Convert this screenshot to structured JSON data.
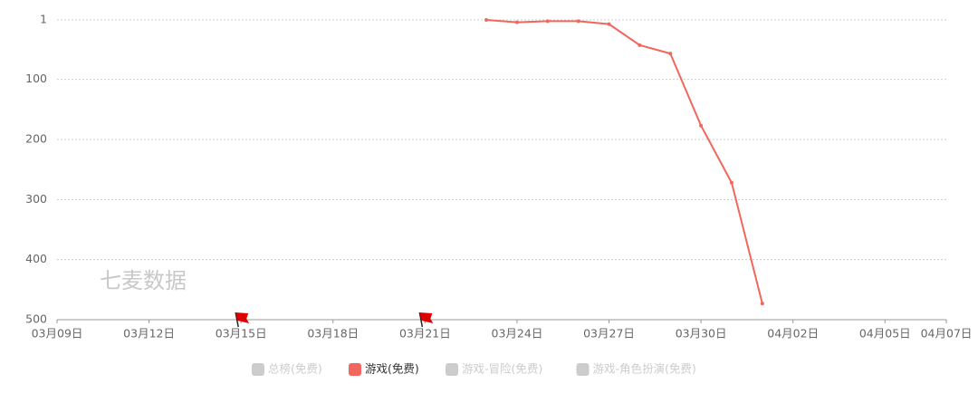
{
  "chart_data": {
    "type": "line",
    "watermark": "七麦数据",
    "x": [
      "03月23日",
      "03月24日",
      "03月25日",
      "03月26日",
      "03月27日",
      "03月28日",
      "03月29日",
      "03月30日",
      "03月31日",
      "04月01日"
    ],
    "series": [
      {
        "name": "总榜(免费)",
        "color": "#cccccc",
        "visible": false,
        "values": [
          null,
          null,
          null,
          null,
          null,
          null,
          null,
          null,
          null,
          null
        ]
      },
      {
        "name": "游戏(免费)",
        "color": "#f0675d",
        "visible": true,
        "values": [
          1,
          5,
          3,
          3,
          8,
          43,
          57,
          177,
          272,
          473
        ]
      },
      {
        "name": "游戏-冒险(免费)",
        "color": "#cccccc",
        "visible": false,
        "values": [
          null,
          null,
          null,
          null,
          null,
          null,
          null,
          null,
          null,
          null
        ]
      },
      {
        "name": "游戏-角色扮演(免费)",
        "color": "#cccccc",
        "visible": false,
        "values": [
          null,
          null,
          null,
          null,
          null,
          null,
          null,
          null,
          null,
          null
        ]
      }
    ],
    "xlim": [
      "03月09日",
      "04月07日"
    ],
    "xticks": [
      "03月09日",
      "03月12日",
      "03月15日",
      "03月18日",
      "03月21日",
      "03月24日",
      "03月27日",
      "03月30日",
      "04月02日",
      "04月05日",
      "04月07日"
    ],
    "ylim": [
      1,
      500
    ],
    "y_inverted": true,
    "yticks": [
      1,
      100,
      200,
      300,
      400,
      500
    ],
    "grid": true,
    "flags": [
      "03月15日",
      "03月21日"
    ],
    "flag_color": "#dd0000",
    "legend_position": "bottom"
  }
}
